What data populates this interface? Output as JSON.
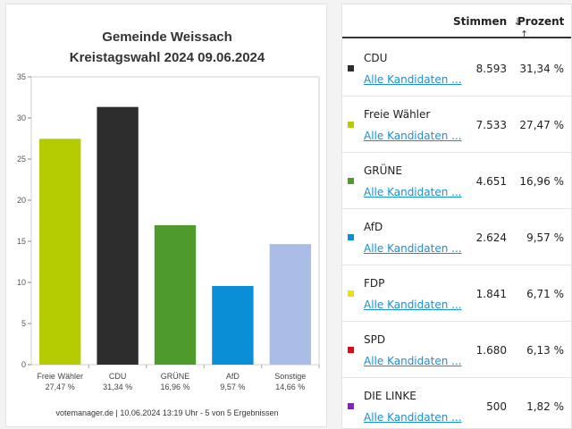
{
  "chart_data": {
    "type": "bar",
    "title": "Gemeinde Weissach",
    "subtitle": "Kreistagswahl 2024 09.06.2024",
    "categories": [
      "Freie Wähler",
      "CDU",
      "GRÜNE",
      "AfD",
      "Sonstige"
    ],
    "category_pct_labels": [
      "27,47 %",
      "31,34 %",
      "16,96 %",
      "9,57 %",
      "14,66 %"
    ],
    "values": [
      27.47,
      31.34,
      16.96,
      9.57,
      14.66
    ],
    "colors": [
      "#b5cc00",
      "#2d2d2d",
      "#4e9a2a",
      "#0a8ed6",
      "#aabde6"
    ],
    "ylim": [
      0,
      35
    ],
    "yticks": [
      0,
      5,
      10,
      15,
      20,
      25,
      30,
      35
    ],
    "grid": false,
    "footer": "votemanager.de | 10.06.2024 13:19 Uhr - 5 von 5 Ergebnissen"
  },
  "table": {
    "header": {
      "votes": "Stimmen",
      "votes_sort_icon": "↓",
      "percent": "Prozent",
      "percent_sort_icon": "↑"
    },
    "link_label": "Alle Kandidaten ...",
    "rows": [
      {
        "party": "CDU",
        "color": "#2d2d2d",
        "votes": "8.593",
        "percent": "31,34 %"
      },
      {
        "party": "Freie Wähler",
        "color": "#b5cc00",
        "votes": "7.533",
        "percent": "27,47 %"
      },
      {
        "party": "GRÜNE",
        "color": "#4e9a2a",
        "votes": "4.651",
        "percent": "16,96 %"
      },
      {
        "party": "AfD",
        "color": "#0a8ed6",
        "votes": "2.624",
        "percent": "9,57 %"
      },
      {
        "party": "FDP",
        "color": "#f0e000",
        "votes": "1.841",
        "percent": "6,71 %"
      },
      {
        "party": "SPD",
        "color": "#e30613",
        "votes": "1.680",
        "percent": "6,13 %"
      },
      {
        "party": "DIE LINKE",
        "color": "#8a1ec8",
        "votes": "500",
        "percent": "1,82 %"
      }
    ]
  }
}
